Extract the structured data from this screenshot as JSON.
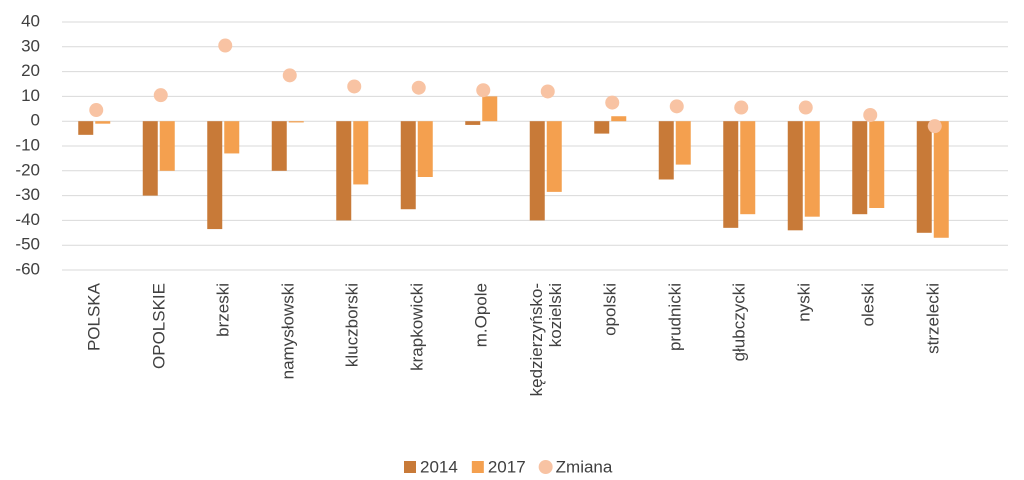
{
  "chart_data": {
    "type": "bar",
    "categories": [
      "POLSKA",
      "OPOLSKIE",
      "brzeski",
      "namysłowski",
      "kluczborski",
      "krapkowicki",
      "m.Opole",
      "kędzierzyńsko-kozielski",
      "opolski",
      "prudnicki",
      "głubczycki",
      "nyski",
      "oleski",
      "strzelecki"
    ],
    "series": [
      {
        "name": "2014",
        "color": "#c87a38",
        "kind": "bar",
        "values": [
          -5.5,
          -30,
          -43.5,
          -20,
          -40,
          -35.5,
          -1.5,
          -40,
          -5,
          -23.5,
          -43,
          -44,
          -37.5,
          -45
        ]
      },
      {
        "name": "2017",
        "color": "#f4a04f",
        "kind": "bar",
        "values": [
          -1,
          -20,
          -13,
          -0.5,
          -25.5,
          -22.5,
          10,
          -28.5,
          2,
          -17.5,
          -37.5,
          -38.5,
          -35,
          -47
        ]
      },
      {
        "name": "Zmiana",
        "color": "#f8c3a3",
        "kind": "dot",
        "values": [
          4.5,
          10.5,
          30.5,
          18.5,
          14,
          13.5,
          12.5,
          12,
          7.5,
          6,
          5.5,
          5.5,
          2.5,
          -2
        ]
      }
    ],
    "ylim": [
      -60,
      40
    ],
    "yticks": [
      -60,
      -50,
      -40,
      -30,
      -20,
      -10,
      0,
      10,
      20,
      30,
      40
    ],
    "grid": true
  }
}
